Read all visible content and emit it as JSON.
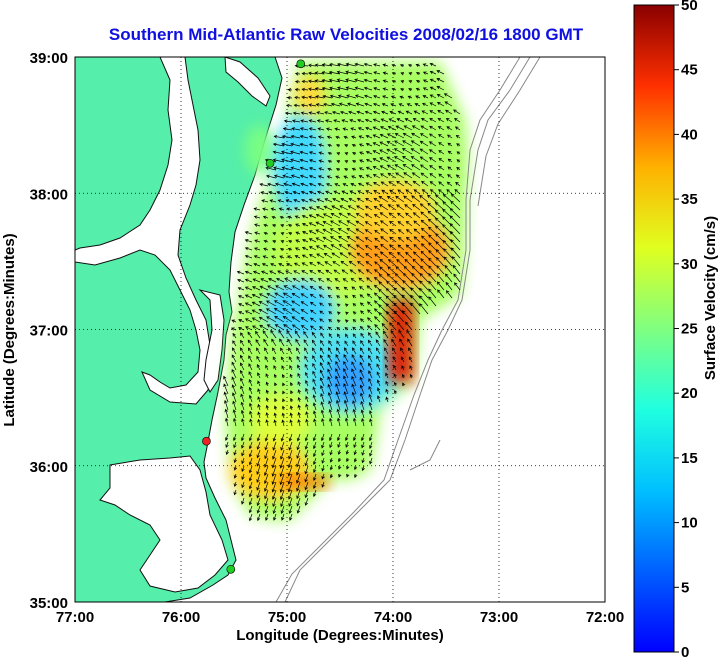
{
  "chart_data": {
    "type": "heatmap",
    "title": "Southern Mid-Atlantic Raw Velocities 2008/02/16 1800 GMT",
    "xlabel": "Longitude (Degrees:Minutes)",
    "ylabel": "Latitude (Degrees:Minutes)",
    "x_ticks": [
      "77:00",
      "76:00",
      "75:00",
      "74:00",
      "73:00",
      "72:00"
    ],
    "y_ticks": [
      "39:00",
      "38:00",
      "37:00",
      "36:00",
      "35:00"
    ],
    "xlim": [
      -77,
      -72
    ],
    "ylim": [
      35,
      39
    ],
    "grid": true,
    "colorbar": {
      "label": "Surface Velocity (cm/s)",
      "range": [
        0,
        50
      ],
      "ticks": [
        "0",
        "5",
        "10",
        "15",
        "20",
        "25",
        "30",
        "35",
        "40",
        "45",
        "50"
      ],
      "colormap": "jet"
    },
    "stations": [
      {
        "lon": -74.87,
        "lat": 38.95,
        "color": "#22cc22"
      },
      {
        "lon": -75.16,
        "lat": 38.22,
        "color": "#22cc22"
      },
      {
        "lon": -75.76,
        "lat": 36.18,
        "color": "#ee2222"
      },
      {
        "lon": -75.53,
        "lat": 35.24,
        "color": "#22cc22"
      }
    ]
  },
  "colors": {
    "land": "#55eeaa",
    "title": "#1010e0",
    "coast": "#111111",
    "bathymetry": "#888888"
  }
}
